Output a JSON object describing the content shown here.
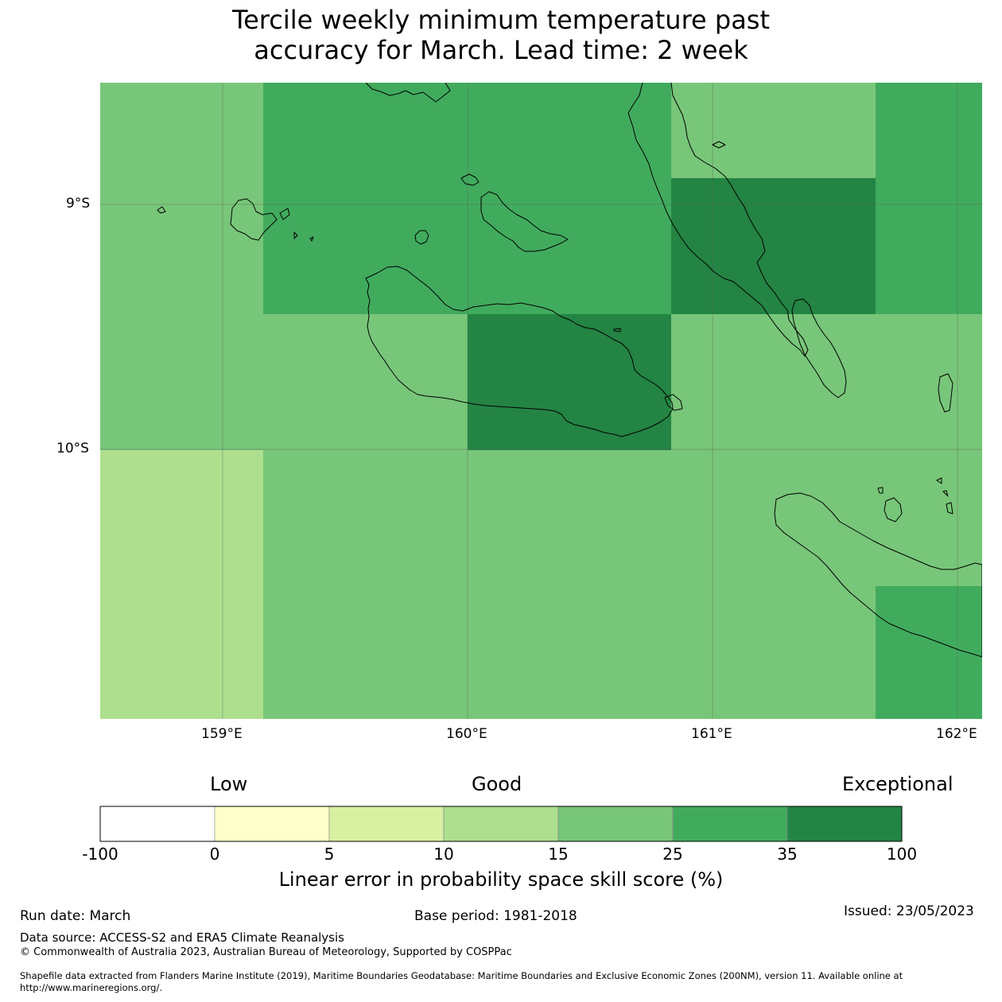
{
  "title": {
    "line1": "Tercile weekly minimum temperature past",
    "line2": "accuracy for March. Lead time: 2 week"
  },
  "map": {
    "lat_labels": [
      "9°S",
      "10°S"
    ],
    "lon_labels": [
      "159°E",
      "160°E",
      "161°E",
      "162°E"
    ],
    "extent": {
      "lon": [
        158.5,
        162.1
      ],
      "lat": [
        -11.1,
        -8.5
      ]
    },
    "colors": {
      "10-15": "#addf8e",
      "15-25": "#78c679",
      "25-35": "#41ab5d",
      "35-100": "#238443",
      "coast": "#000000",
      "gridline": "#555555"
    }
  },
  "colorbar": {
    "categories": [
      "Low",
      "Good",
      "Exceptional"
    ],
    "bins": [
      {
        "range": "-100 to 0",
        "color": "#ffffff"
      },
      {
        "range": "0 to 5",
        "color": "#ffffcc"
      },
      {
        "range": "5 to 10",
        "color": "#d9f0a3"
      },
      {
        "range": "10 to 15",
        "color": "#addf8e"
      },
      {
        "range": "15 to 25",
        "color": "#78c679"
      },
      {
        "range": "25 to 35",
        "color": "#41ab5d"
      },
      {
        "range": "35 to 100",
        "color": "#238443"
      }
    ],
    "tick_labels": [
      "-100",
      "0",
      "5",
      "10",
      "15",
      "25",
      "35",
      "100"
    ],
    "label": "Linear error in probability space skill score (%)"
  },
  "footer": {
    "run_date": "Run date: March",
    "base_period": "Base period: 1981-2018",
    "issued": "Issued: 23/05/2023",
    "data_source": "Data source: ACCESS-S2 and ERA5 Climate Reanalysis",
    "copyright": "© Commonwealth of Australia 2023, Australian Bureau of Meteorology, Supported by COSPPac",
    "shapefile_line1": "Shapefile data extracted from Flanders Marine Institute (2019), Maritime Boundaries Geodatabase: Maritime Boundaries and Exclusive Economic Zones (200NM), version 11. Available online at",
    "shapefile_line2": "http://www.marineregions.org/."
  }
}
